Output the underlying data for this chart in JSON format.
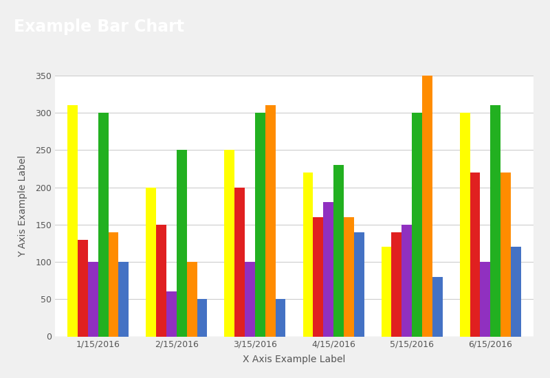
{
  "title": "Example Bar Chart",
  "title_bg_color": "#1565a8",
  "title_text_color": "#ffffff",
  "xlabel": "X Axis Example Label",
  "ylabel": "Y Axis Example Label",
  "categories": [
    "1/15/2016",
    "2/15/2016",
    "3/15/2016",
    "4/15/2016",
    "5/15/2016",
    "6/15/2016"
  ],
  "series": {
    "yellow": [
      310,
      200,
      250,
      220,
      120,
      300
    ],
    "red": [
      130,
      150,
      200,
      160,
      140,
      220
    ],
    "purple": [
      100,
      60,
      100,
      180,
      150,
      100
    ],
    "green": [
      300,
      250,
      300,
      230,
      300,
      310
    ],
    "orange": [
      140,
      100,
      310,
      160,
      350,
      220
    ],
    "blue": [
      100,
      50,
      50,
      140,
      80,
      120
    ]
  },
  "colors": {
    "yellow": "#ffff00",
    "red": "#e02020",
    "purple": "#9030c0",
    "green": "#22b020",
    "orange": "#ff8c00",
    "blue": "#4472c4"
  },
  "ylim": [
    0,
    350
  ],
  "yticks": [
    0,
    50,
    100,
    150,
    200,
    250,
    300,
    350
  ],
  "outer_bg_color": "#f0f0f0",
  "plot_bg_color": "#ffffff",
  "grid_color": "#cccccc",
  "bar_width": 0.13,
  "figsize": [
    8.0,
    5.5
  ],
  "dpi": 100
}
